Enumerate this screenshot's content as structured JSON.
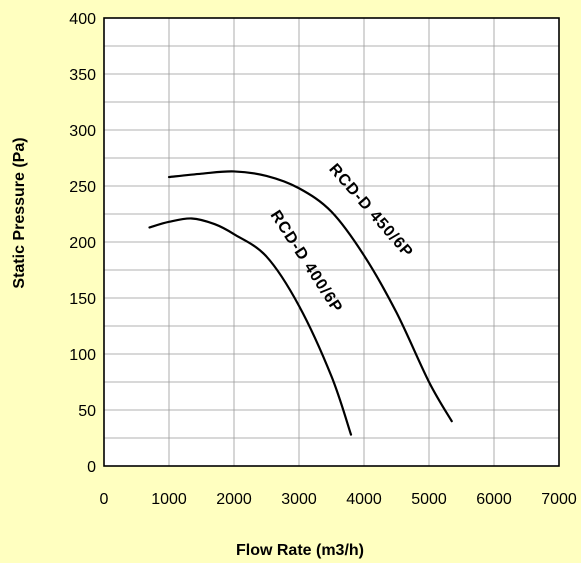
{
  "chart_data": {
    "type": "line",
    "xlabel": "Flow Rate (m3/h)",
    "ylabel": "Static Pressure (Pa)",
    "xlim": [
      0,
      7000
    ],
    "ylim": [
      0,
      400
    ],
    "x_ticks": [
      0,
      1000,
      2000,
      3000,
      4000,
      5000,
      6000,
      7000
    ],
    "y_ticks": [
      0,
      50,
      100,
      150,
      200,
      250,
      300,
      350,
      400
    ],
    "x_tick_labels": [
      "0",
      "1000",
      "2000",
      "3000",
      "4000",
      "5000",
      "6000",
      "7000"
    ],
    "y_tick_labels": [
      "0",
      "50",
      "100",
      "150",
      "200",
      "250",
      "300",
      "350",
      "400"
    ],
    "grid": true,
    "legend": "none",
    "series": [
      {
        "name": "RCD-D 450/6P",
        "color": "#000000",
        "x": [
          1000,
          1500,
          2000,
          2500,
          3000,
          3500,
          4000,
          4500,
          5000,
          5350
        ],
        "y": [
          258,
          261,
          263,
          259,
          248,
          227,
          188,
          137,
          75,
          40
        ]
      },
      {
        "name": "RCD-D 400/6P",
        "color": "#000000",
        "x": [
          700,
          1000,
          1350,
          1700,
          2000,
          2500,
          3000,
          3500,
          3800
        ],
        "y": [
          213,
          218,
          221,
          216,
          207,
          187,
          143,
          80,
          28
        ]
      }
    ]
  }
}
